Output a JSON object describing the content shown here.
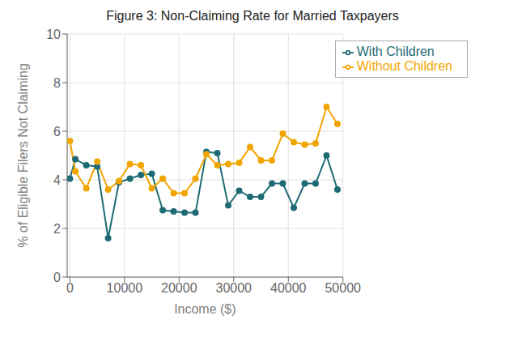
{
  "chart_data": {
    "type": "line",
    "title": "Figure 3: Non-Claiming Rate for Married Taxpayers",
    "xlabel": "Income ($)",
    "ylabel": "% of Eligible Filers Not Claiming",
    "x": [
      0,
      1000,
      3000,
      5000,
      7000,
      9000,
      11000,
      13000,
      15000,
      17000,
      19000,
      21000,
      23000,
      25000,
      27000,
      29000,
      31000,
      33000,
      35000,
      37000,
      39000,
      41000,
      43000,
      45000,
      47000,
      49000
    ],
    "series": [
      {
        "name": "With Children",
        "color": "#1e6b75",
        "marker": "circle",
        "values": [
          4.05,
          4.85,
          4.6,
          4.55,
          1.6,
          3.9,
          4.05,
          4.2,
          4.25,
          2.75,
          2.7,
          2.65,
          2.65,
          5.15,
          5.1,
          2.95,
          3.55,
          3.3,
          3.3,
          3.85,
          3.85,
          2.85,
          3.85,
          3.85,
          5.0,
          3.6
        ]
      },
      {
        "name": "Without Children",
        "color": "#f0a500",
        "marker": "circle",
        "values": [
          5.6,
          4.35,
          3.65,
          4.75,
          3.6,
          3.95,
          4.65,
          4.6,
          3.65,
          4.05,
          3.45,
          3.45,
          4.05,
          5.05,
          4.6,
          4.65,
          4.7,
          5.35,
          4.8,
          4.8,
          5.9,
          5.55,
          5.45,
          5.5,
          7.0,
          6.3
        ]
      }
    ],
    "xlim": [
      -500,
      50000
    ],
    "xticks": [
      0,
      10000,
      20000,
      30000,
      40000,
      50000
    ],
    "ylim": [
      0,
      10
    ],
    "yticks": [
      0,
      2,
      4,
      6,
      8,
      10
    ],
    "grid": true,
    "legend": "upper right"
  }
}
